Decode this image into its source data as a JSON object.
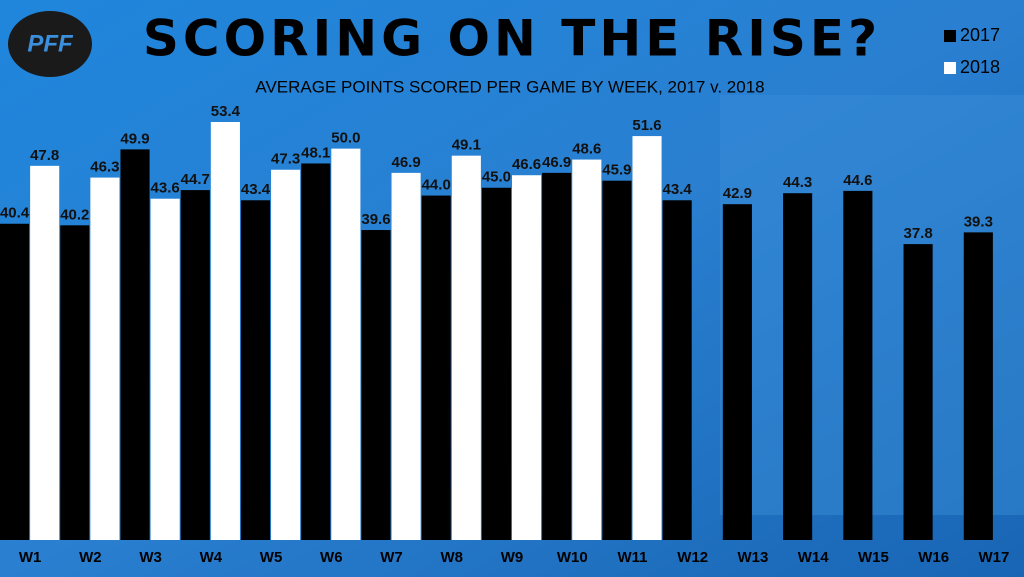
{
  "chart_data": {
    "type": "bar",
    "logo": "PFF",
    "title": "SCORING ON THE RISE?",
    "subtitle": "AVERAGE POINTS SCORED PER GAME BY WEEK, 2017 v. 2018",
    "categories": [
      "W1",
      "W2",
      "W3",
      "W4",
      "W5",
      "W6",
      "W7",
      "W8",
      "W9",
      "W10",
      "W11",
      "W12",
      "W13",
      "W14",
      "W15",
      "W16",
      "W17"
    ],
    "legend": "top-right",
    "series": [
      {
        "name": "2017",
        "color": "#000000",
        "values": [
          40.4,
          40.2,
          49.9,
          44.7,
          43.4,
          48.1,
          39.6,
          44.0,
          45.0,
          46.9,
          45.9,
          43.4,
          42.9,
          44.3,
          44.6,
          37.8,
          39.3
        ],
        "value_labels": [
          "40.4",
          "40.2",
          "49.9",
          "44.7",
          "43.4",
          "48.1",
          "39.6",
          "44.0",
          "45.0",
          "46.9",
          "45.9",
          "43.4",
          "42.9",
          "44.3",
          "44.6",
          "37.8",
          "39.3"
        ]
      },
      {
        "name": "2018",
        "color": "#ffffff",
        "values": [
          47.8,
          46.3,
          43.6,
          53.4,
          47.3,
          50.0,
          46.9,
          49.1,
          46.6,
          48.6,
          51.6,
          null,
          null,
          null,
          null,
          null,
          null
        ],
        "value_labels": [
          "47.8",
          "46.3",
          "43.6",
          "53.4",
          "47.3",
          "50.0",
          "46.9",
          "49.1",
          "46.6",
          "48.6",
          "51.6",
          null,
          null,
          null,
          null,
          null,
          null
        ]
      }
    ]
  }
}
